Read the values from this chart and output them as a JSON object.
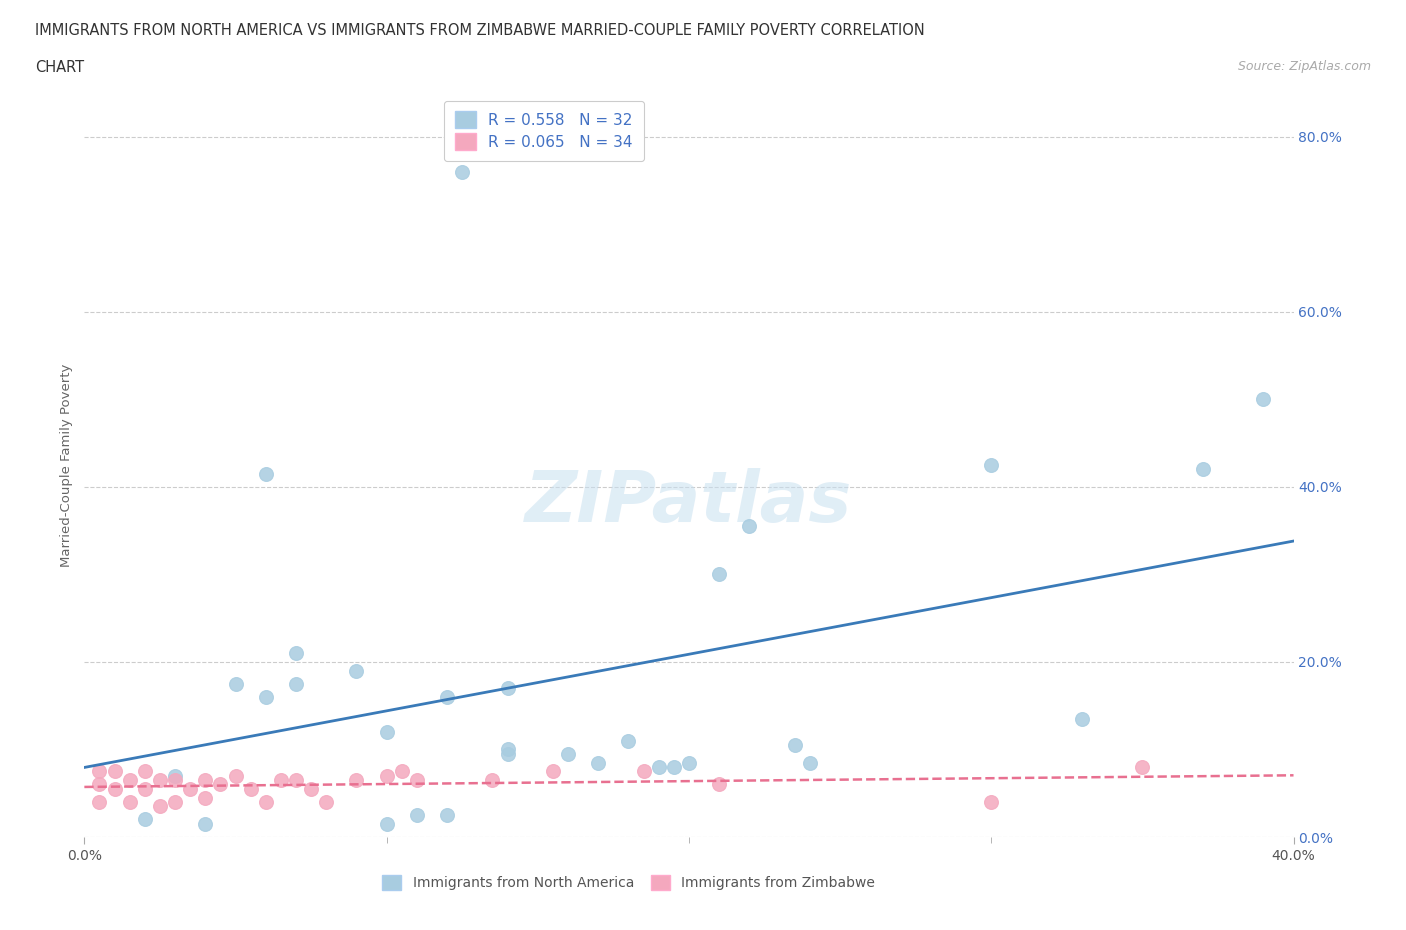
{
  "title_line1": "IMMIGRANTS FROM NORTH AMERICA VS IMMIGRANTS FROM ZIMBABWE MARRIED-COUPLE FAMILY POVERTY CORRELATION",
  "title_line2": "CHART",
  "source_text": "Source: ZipAtlas.com",
  "ylabel": "Married-Couple Family Poverty",
  "xlim": [
    0.0,
    0.4
  ],
  "ylim": [
    0.0,
    0.85
  ],
  "xticks": [
    0.0,
    0.4
  ],
  "xtick_labels": [
    "0.0%",
    "40.0%"
  ],
  "yticks": [
    0.0,
    0.2,
    0.4,
    0.6,
    0.8
  ],
  "ytick_labels": [
    "0.0%",
    "20.0%",
    "40.0%",
    "60.0%",
    "80.0%"
  ],
  "blue_R": 0.558,
  "blue_N": 32,
  "pink_R": 0.065,
  "pink_N": 34,
  "blue_color": "#a8cce0",
  "pink_color": "#f4a8be",
  "blue_line_color": "#3a7ab8",
  "pink_line_color": "#e87090",
  "legend_text_color": "#4472c4",
  "watermark": "ZIPatlas",
  "blue_scatter_x": [
    0.125,
    0.02,
    0.04,
    0.06,
    0.05,
    0.07,
    0.07,
    0.09,
    0.1,
    0.11,
    0.12,
    0.12,
    0.14,
    0.06,
    0.1,
    0.14,
    0.14,
    0.16,
    0.17,
    0.18,
    0.19,
    0.195,
    0.2,
    0.21,
    0.22,
    0.235,
    0.24,
    0.3,
    0.03,
    0.33,
    0.37,
    0.39
  ],
  "blue_scatter_y": [
    0.76,
    0.02,
    0.015,
    0.16,
    0.175,
    0.175,
    0.21,
    0.19,
    0.015,
    0.025,
    0.025,
    0.16,
    0.17,
    0.415,
    0.12,
    0.095,
    0.1,
    0.095,
    0.085,
    0.11,
    0.08,
    0.08,
    0.085,
    0.3,
    0.355,
    0.105,
    0.085,
    0.425,
    0.07,
    0.135,
    0.42,
    0.5
  ],
  "pink_scatter_x": [
    0.005,
    0.005,
    0.005,
    0.01,
    0.01,
    0.015,
    0.015,
    0.02,
    0.02,
    0.025,
    0.025,
    0.03,
    0.03,
    0.035,
    0.04,
    0.04,
    0.045,
    0.05,
    0.055,
    0.06,
    0.065,
    0.07,
    0.075,
    0.08,
    0.09,
    0.1,
    0.105,
    0.11,
    0.135,
    0.155,
    0.185,
    0.21,
    0.3,
    0.35
  ],
  "pink_scatter_y": [
    0.04,
    0.06,
    0.075,
    0.055,
    0.075,
    0.04,
    0.065,
    0.055,
    0.075,
    0.035,
    0.065,
    0.04,
    0.065,
    0.055,
    0.045,
    0.065,
    0.06,
    0.07,
    0.055,
    0.04,
    0.065,
    0.065,
    0.055,
    0.04,
    0.065,
    0.07,
    0.075,
    0.065,
    0.065,
    0.075,
    0.075,
    0.06,
    0.04,
    0.08
  ],
  "legend_label_blue": "Immigrants from North America",
  "legend_label_pink": "Immigrants from Zimbabwe",
  "background_color": "#ffffff",
  "grid_color": "#cccccc"
}
